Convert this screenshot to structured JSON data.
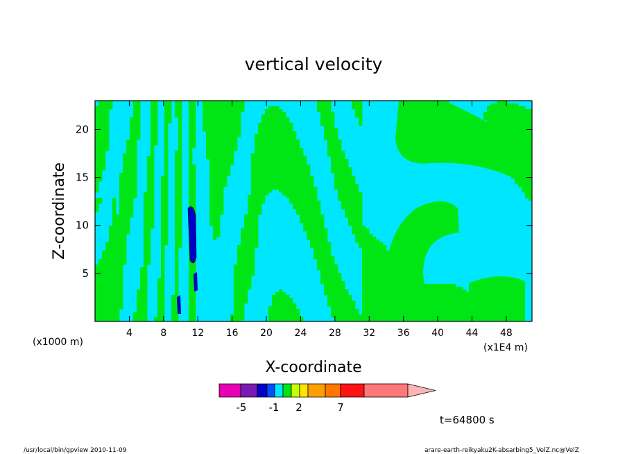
{
  "chart_data": {
    "type": "heatmap",
    "title": "vertical velocity",
    "xlabel": "X-coordinate",
    "ylabel": "Z-coordinate",
    "x_unit_left": "(x1000 m)",
    "x_unit_right": "(x1E4 m)",
    "xlim": [
      0,
      51
    ],
    "ylim": [
      0,
      23
    ],
    "x_ticks": [
      4,
      8,
      12,
      16,
      20,
      24,
      28,
      32,
      36,
      40,
      44,
      48
    ],
    "y_ticks": [
      5,
      10,
      15,
      20
    ],
    "colorbar": {
      "colors": [
        "#e600b4",
        "#7a1ab4",
        "#0000c8",
        "#0050ff",
        "#00e6ff",
        "#00e614",
        "#c8ff00",
        "#ffe600",
        "#ffa000",
        "#ff7800",
        "#ff1414",
        "#ff7878",
        "#ffb4b4"
      ],
      "labels": [
        "-5",
        "-1",
        "2",
        "7"
      ],
      "extend": "max"
    },
    "regions": {
      "positive_color": "#00e614",
      "negative_color": "#00e6ff",
      "extreme_color": "#0000c8"
    },
    "time_label": "t=64800 s",
    "footer_left": "/usr/local/bin/gpview  2010-11-09",
    "footer_right": "arare-earth-reikyaku2K-absarbing5_VelZ.nc@VelZ"
  }
}
